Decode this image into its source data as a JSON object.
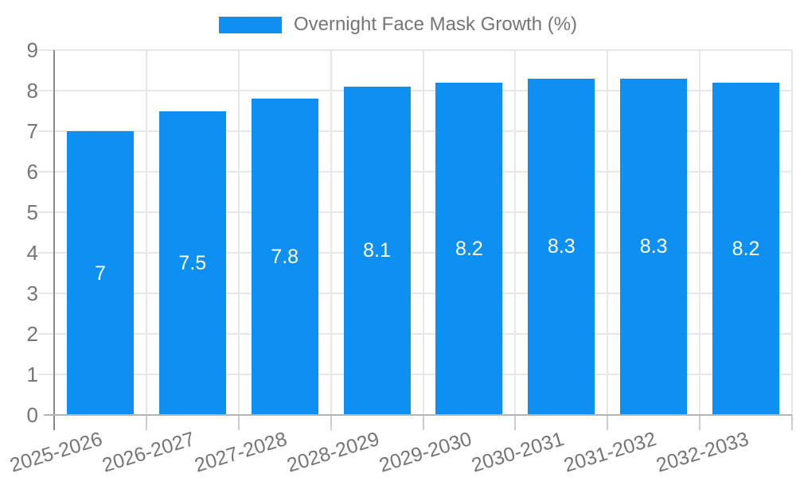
{
  "chart_data": {
    "type": "bar",
    "title": "",
    "legend": "Overnight Face Mask Growth (%)",
    "legend_position": "top-center",
    "categories": [
      "2025-2026",
      "2026-2027",
      "2027-2028",
      "2028-2029",
      "2029-2030",
      "2030-2031",
      "2031-2032",
      "2032-2033"
    ],
    "values": [
      7,
      7.5,
      7.8,
      8.1,
      8.2,
      8.3,
      8.3,
      8.2
    ],
    "value_labels": [
      "7",
      "7.5",
      "7.8",
      "8.1",
      "8.2",
      "8.3",
      "8.3",
      "8.2"
    ],
    "ylim": [
      0,
      9
    ],
    "yticks": [
      0,
      1,
      2,
      3,
      4,
      5,
      6,
      7,
      8,
      9
    ],
    "grid": true,
    "colors": {
      "bar": "#0d90f2",
      "value_label": "#ffffff",
      "axis_label": "#757575"
    }
  }
}
